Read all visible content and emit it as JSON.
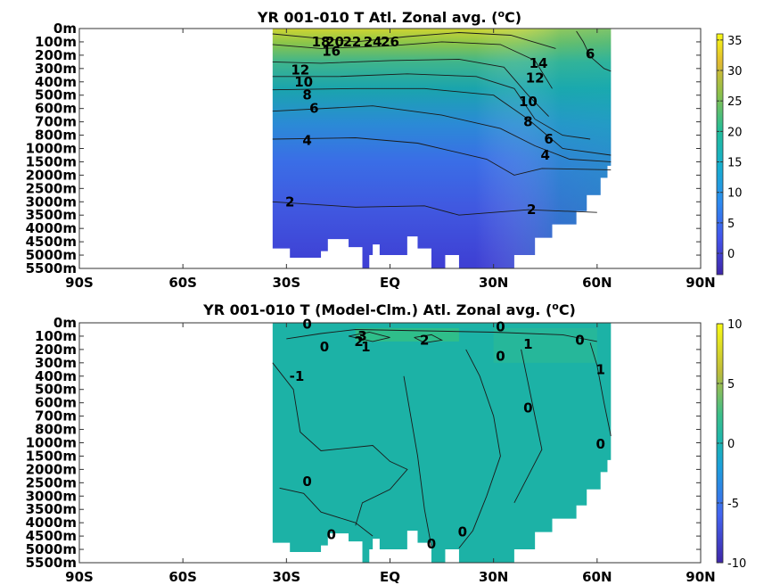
{
  "chart_data": [
    {
      "type": "heatmap",
      "title": "YR 001-010 T Atl. Zonal avg. (",
      "title_sup": "o",
      "title_unit": "C)",
      "xticks": [
        "90S",
        "60S",
        "30S",
        "EQ",
        "30N",
        "60N",
        "90N"
      ],
      "xtick_values": [
        -90,
        -60,
        -30,
        0,
        30,
        60,
        90
      ],
      "xlim": [
        -90,
        90
      ],
      "yticks": [
        "0m",
        "100m",
        "200m",
        "300m",
        "400m",
        "500m",
        "600m",
        "700m",
        "800m",
        "1000m",
        "1500m",
        "2000m",
        "2500m",
        "3000m",
        "3500m",
        "4000m",
        "4500m",
        "5000m",
        "5500m"
      ],
      "data_lat_range": [
        -34,
        64
      ],
      "colorbar": {
        "ticks": [
          "0",
          "5",
          "10",
          "15",
          "20",
          "25",
          "30",
          "35"
        ],
        "values": [
          0,
          5,
          10,
          15,
          20,
          25,
          30,
          35
        ],
        "range": [
          -3.5,
          36
        ]
      },
      "contour_labels": [
        {
          "text": "26",
          "lat": 0,
          "level": 1
        },
        {
          "text": "24",
          "lat": -5,
          "level": 1
        },
        {
          "text": "22",
          "lat": -11,
          "level": 1
        },
        {
          "text": "20",
          "lat": -16,
          "level": 1
        },
        {
          "text": "18",
          "lat": -20,
          "level": 1
        },
        {
          "text": "16",
          "lat": -17,
          "level": 1.7
        },
        {
          "text": "12",
          "lat": -26,
          "level": 3.1
        },
        {
          "text": "10",
          "lat": -25,
          "level": 4
        },
        {
          "text": "8",
          "lat": -24,
          "level": 5
        },
        {
          "text": "6",
          "lat": -22,
          "level": 6
        },
        {
          "text": "4",
          "lat": -24,
          "level": 8.4
        },
        {
          "text": "2",
          "lat": -29,
          "level": 13
        },
        {
          "text": "14",
          "lat": 43,
          "level": 2.6
        },
        {
          "text": "12",
          "lat": 42,
          "level": 3.7
        },
        {
          "text": "10",
          "lat": 40,
          "level": 5.5
        },
        {
          "text": "8",
          "lat": 40,
          "level": 7
        },
        {
          "text": "6",
          "lat": 46,
          "level": 8.3
        },
        {
          "text": "4",
          "lat": 45,
          "level": 9.5
        },
        {
          "text": "2",
          "lat": 41,
          "level": 13.6
        },
        {
          "text": "6",
          "lat": 58,
          "level": 1.9
        }
      ]
    },
    {
      "type": "heatmap",
      "title": "YR 001-010 T (Model-Clm.) Atl. Zonal avg. (",
      "title_sup": "o",
      "title_unit": "C)",
      "xticks": [
        "90S",
        "60S",
        "30S",
        "EQ",
        "30N",
        "60N",
        "90N"
      ],
      "xtick_values": [
        -90,
        -60,
        -30,
        0,
        30,
        60,
        90
      ],
      "xlim": [
        -90,
        90
      ],
      "yticks": [
        "0m",
        "100m",
        "200m",
        "300m",
        "400m",
        "500m",
        "600m",
        "700m",
        "800m",
        "1000m",
        "1500m",
        "2000m",
        "2500m",
        "3000m",
        "3500m",
        "4000m",
        "4500m",
        "5000m",
        "5500m"
      ],
      "data_lat_range": [
        -34,
        64
      ],
      "colorbar": {
        "ticks": [
          "-10",
          "-5",
          "0",
          "5",
          "10"
        ],
        "values": [
          -10,
          -5,
          0,
          5,
          10
        ],
        "range": [
          -10,
          10
        ]
      },
      "contour_labels": [
        {
          "text": "0",
          "lat": -24,
          "level": 0.1
        },
        {
          "text": "0",
          "lat": -19,
          "level": 1.8
        },
        {
          "text": "3",
          "lat": -8,
          "level": 1
        },
        {
          "text": "2",
          "lat": -9,
          "level": 1.4
        },
        {
          "text": "1",
          "lat": -7,
          "level": 1.8
        },
        {
          "text": "2",
          "lat": 10,
          "level": 1.3
        },
        {
          "text": "0",
          "lat": 32,
          "level": 0.3
        },
        {
          "text": "0",
          "lat": 32,
          "level": 2.5
        },
        {
          "text": "1",
          "lat": 40,
          "level": 1.6
        },
        {
          "text": "0",
          "lat": 55,
          "level": 1.3
        },
        {
          "text": "-1",
          "lat": -27,
          "level": 4
        },
        {
          "text": "1",
          "lat": 61,
          "level": 3.5
        },
        {
          "text": "0",
          "lat": 40,
          "level": 6.4
        },
        {
          "text": "0",
          "lat": 61,
          "level": 9.1
        },
        {
          "text": "0",
          "lat": -24,
          "level": 11.9
        },
        {
          "text": "0",
          "lat": -17,
          "level": 15.9
        },
        {
          "text": "0",
          "lat": 12,
          "level": 16.6
        },
        {
          "text": "0",
          "lat": 21,
          "level": 15.7
        }
      ]
    }
  ]
}
